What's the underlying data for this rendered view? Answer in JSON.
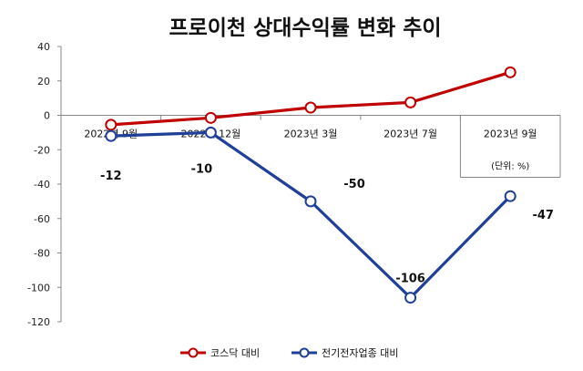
{
  "chart_data": {
    "type": "line",
    "title": "프로이천 상대수익률 변화 추이",
    "categories": [
      "2022년 9월",
      "2022년 12월",
      "2023년 3월",
      "2023년 7월",
      "2023년 9월"
    ],
    "unit_note": "(단위: %)",
    "ylim": [
      -120,
      40
    ],
    "yticks": [
      40,
      20,
      0,
      -20,
      -40,
      -60,
      -80,
      -100,
      -120
    ],
    "grid": false,
    "legend_position": "bottom",
    "series": [
      {
        "name": "코스닥 대비",
        "color": "#c00000",
        "values": [
          -5.5,
          -1.5,
          4.5,
          7.5,
          25
        ]
      },
      {
        "name": "전기전자업종 대비",
        "color": "#1f3f99",
        "values": [
          -12,
          -10,
          -50,
          -106,
          -47
        ]
      }
    ],
    "data_labels": [
      "-12",
      "-10",
      "-50",
      "-106",
      "-47"
    ]
  }
}
